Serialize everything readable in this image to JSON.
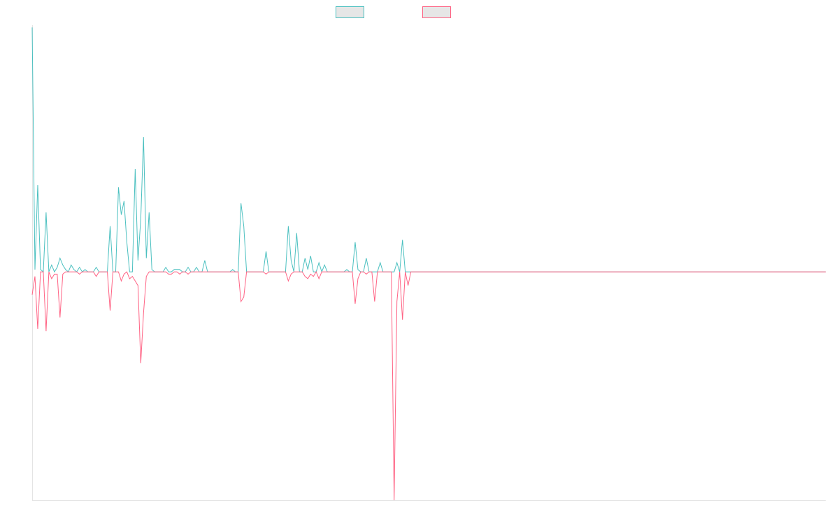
{
  "chart_data": {
    "type": "line",
    "title": "",
    "xlabel": "",
    "ylabel": "",
    "x_count": 286,
    "ylim": [
      -1.0,
      1.08
    ],
    "grid": false,
    "legend_position": "top-center",
    "legend": [
      {
        "name": "",
        "color": "#4bc0c0",
        "fill": "#e6e6e6"
      },
      {
        "name": "",
        "color": "#ff6384",
        "fill": "#e6e6e6"
      }
    ],
    "series": [
      {
        "name": "",
        "color": "#4bc0c0",
        "sparse_values": [
          [
            0,
            1.07
          ],
          [
            1,
            0.01
          ],
          [
            2,
            0.38
          ],
          [
            3,
            0.01
          ],
          [
            4,
            0.0
          ],
          [
            5,
            0.26
          ],
          [
            6,
            0.0
          ],
          [
            7,
            0.03
          ],
          [
            8,
            0.0
          ],
          [
            9,
            0.02
          ],
          [
            10,
            0.06
          ],
          [
            11,
            0.03
          ],
          [
            12,
            0.01
          ],
          [
            13,
            0.0
          ],
          [
            14,
            0.03
          ],
          [
            15,
            0.01
          ],
          [
            16,
            0.0
          ],
          [
            17,
            0.02
          ],
          [
            18,
            0.0
          ],
          [
            19,
            0.01
          ],
          [
            20,
            0.0
          ],
          [
            21,
            0.0
          ],
          [
            22,
            0.0
          ],
          [
            23,
            0.02
          ],
          [
            24,
            0.0
          ],
          [
            25,
            0.0
          ],
          [
            26,
            0.0
          ],
          [
            27,
            0.0
          ],
          [
            28,
            0.2
          ],
          [
            29,
            0.0
          ],
          [
            30,
            0.0
          ],
          [
            31,
            0.37
          ],
          [
            32,
            0.25
          ],
          [
            33,
            0.31
          ],
          [
            34,
            0.13
          ],
          [
            35,
            0.0
          ],
          [
            36,
            0.0
          ],
          [
            37,
            0.45
          ],
          [
            38,
            0.05
          ],
          [
            39,
            0.23
          ],
          [
            40,
            0.59
          ],
          [
            41,
            0.06
          ],
          [
            42,
            0.26
          ],
          [
            43,
            0.01
          ],
          [
            44,
            0.0
          ],
          [
            45,
            0.0
          ],
          [
            46,
            0.0
          ],
          [
            47,
            0.0
          ],
          [
            48,
            0.02
          ],
          [
            49,
            0.0
          ],
          [
            50,
            0.0
          ],
          [
            51,
            0.01
          ],
          [
            52,
            0.01
          ],
          [
            53,
            0.01
          ],
          [
            54,
            0.0
          ],
          [
            55,
            0.0
          ],
          [
            56,
            0.02
          ],
          [
            57,
            0.0
          ],
          [
            58,
            0.0
          ],
          [
            59,
            0.02
          ],
          [
            60,
            0.0
          ],
          [
            61,
            0.0
          ],
          [
            62,
            0.05
          ],
          [
            63,
            0.0
          ],
          [
            70,
            0.0
          ],
          [
            71,
            0.0
          ],
          [
            72,
            0.01
          ],
          [
            73,
            0.0
          ],
          [
            74,
            0.0
          ],
          [
            75,
            0.3
          ],
          [
            76,
            0.2
          ],
          [
            77,
            0.0
          ],
          [
            83,
            0.0
          ],
          [
            84,
            0.09
          ],
          [
            85,
            0.0
          ],
          [
            91,
            0.0
          ],
          [
            92,
            0.2
          ],
          [
            93,
            0.05
          ],
          [
            94,
            0.0
          ],
          [
            95,
            0.17
          ],
          [
            96,
            0.0
          ],
          [
            97,
            0.0
          ],
          [
            98,
            0.06
          ],
          [
            99,
            0.01
          ],
          [
            100,
            0.07
          ],
          [
            101,
            0.0
          ],
          [
            102,
            0.0
          ],
          [
            103,
            0.04
          ],
          [
            104,
            0.0
          ],
          [
            105,
            0.03
          ],
          [
            106,
            0.0
          ],
          [
            107,
            0.0
          ],
          [
            112,
            0.0
          ],
          [
            113,
            0.01
          ],
          [
            114,
            0.0
          ],
          [
            115,
            0.0
          ],
          [
            116,
            0.13
          ],
          [
            117,
            0.01
          ],
          [
            118,
            0.0
          ],
          [
            119,
            0.0
          ],
          [
            120,
            0.06
          ],
          [
            121,
            0.0
          ],
          [
            122,
            0.0
          ],
          [
            123,
            0.0
          ],
          [
            124,
            0.0
          ],
          [
            125,
            0.04
          ],
          [
            126,
            0.0
          ],
          [
            127,
            0.0
          ],
          [
            128,
            0.0
          ],
          [
            129,
            0.0
          ],
          [
            130,
            0.0
          ],
          [
            131,
            0.04
          ],
          [
            132,
            0.0
          ],
          [
            133,
            0.14
          ],
          [
            134,
            0.0
          ],
          [
            135,
            0.0
          ],
          [
            136,
            0.0
          ],
          [
            137,
            0.0
          ]
        ]
      },
      {
        "name": "",
        "color": "#ff6384",
        "sparse_values": [
          [
            0,
            -0.1
          ],
          [
            1,
            -0.02
          ],
          [
            2,
            -0.25
          ],
          [
            3,
            0.0
          ],
          [
            4,
            0.0
          ],
          [
            5,
            -0.26
          ],
          [
            6,
            0.0
          ],
          [
            7,
            -0.03
          ],
          [
            8,
            -0.01
          ],
          [
            9,
            -0.01
          ],
          [
            10,
            -0.2
          ],
          [
            11,
            -0.01
          ],
          [
            12,
            0.0
          ],
          [
            13,
            0.0
          ],
          [
            14,
            0.0
          ],
          [
            15,
            0.0
          ],
          [
            16,
            0.0
          ],
          [
            17,
            -0.01
          ],
          [
            18,
            0.0
          ],
          [
            19,
            0.0
          ],
          [
            20,
            0.0
          ],
          [
            21,
            0.0
          ],
          [
            22,
            0.0
          ],
          [
            23,
            -0.02
          ],
          [
            24,
            0.0
          ],
          [
            25,
            0.0
          ],
          [
            26,
            0.0
          ],
          [
            27,
            0.0
          ],
          [
            28,
            -0.17
          ],
          [
            29,
            0.0
          ],
          [
            30,
            0.0
          ],
          [
            31,
            0.0
          ],
          [
            32,
            -0.04
          ],
          [
            33,
            -0.01
          ],
          [
            34,
            0.0
          ],
          [
            35,
            -0.03
          ],
          [
            36,
            -0.02
          ],
          [
            37,
            -0.04
          ],
          [
            38,
            -0.06
          ],
          [
            39,
            -0.4
          ],
          [
            40,
            -0.18
          ],
          [
            41,
            -0.02
          ],
          [
            42,
            0.0
          ],
          [
            43,
            0.0
          ],
          [
            44,
            0.0
          ],
          [
            45,
            0.0
          ],
          [
            46,
            0.0
          ],
          [
            47,
            0.0
          ],
          [
            48,
            0.0
          ],
          [
            49,
            -0.01
          ],
          [
            50,
            -0.01
          ],
          [
            51,
            0.0
          ],
          [
            52,
            0.0
          ],
          [
            53,
            -0.01
          ],
          [
            54,
            0.0
          ],
          [
            55,
            0.0
          ],
          [
            56,
            -0.01
          ],
          [
            57,
            0.0
          ],
          [
            58,
            0.0
          ],
          [
            59,
            0.0
          ],
          [
            60,
            0.0
          ],
          [
            61,
            0.0
          ],
          [
            74,
            0.0
          ],
          [
            75,
            -0.13
          ],
          [
            76,
            -0.11
          ],
          [
            77,
            0.0
          ],
          [
            83,
            0.0
          ],
          [
            84,
            -0.01
          ],
          [
            85,
            0.0
          ],
          [
            91,
            0.0
          ],
          [
            92,
            -0.04
          ],
          [
            93,
            -0.01
          ],
          [
            94,
            0.0
          ],
          [
            95,
            0.0
          ],
          [
            96,
            0.0
          ],
          [
            97,
            0.0
          ],
          [
            98,
            -0.02
          ],
          [
            99,
            -0.03
          ],
          [
            100,
            -0.01
          ],
          [
            101,
            -0.02
          ],
          [
            102,
            0.0
          ],
          [
            103,
            -0.03
          ],
          [
            104,
            0.0
          ],
          [
            105,
            0.0
          ],
          [
            106,
            0.0
          ],
          [
            115,
            0.0
          ],
          [
            116,
            -0.14
          ],
          [
            117,
            -0.03
          ],
          [
            118,
            0.0
          ],
          [
            119,
            0.0
          ],
          [
            120,
            -0.01
          ],
          [
            121,
            0.0
          ],
          [
            122,
            0.0
          ],
          [
            123,
            -0.13
          ],
          [
            124,
            0.0
          ],
          [
            125,
            0.0
          ],
          [
            126,
            0.0
          ],
          [
            127,
            0.0
          ],
          [
            128,
            0.0
          ],
          [
            129,
            0.0
          ],
          [
            130,
            -1.0
          ],
          [
            131,
            -0.13
          ],
          [
            132,
            0.0
          ],
          [
            133,
            -0.21
          ],
          [
            134,
            0.0
          ],
          [
            135,
            -0.06
          ],
          [
            136,
            0.0
          ],
          [
            137,
            0.0
          ]
        ]
      }
    ]
  }
}
